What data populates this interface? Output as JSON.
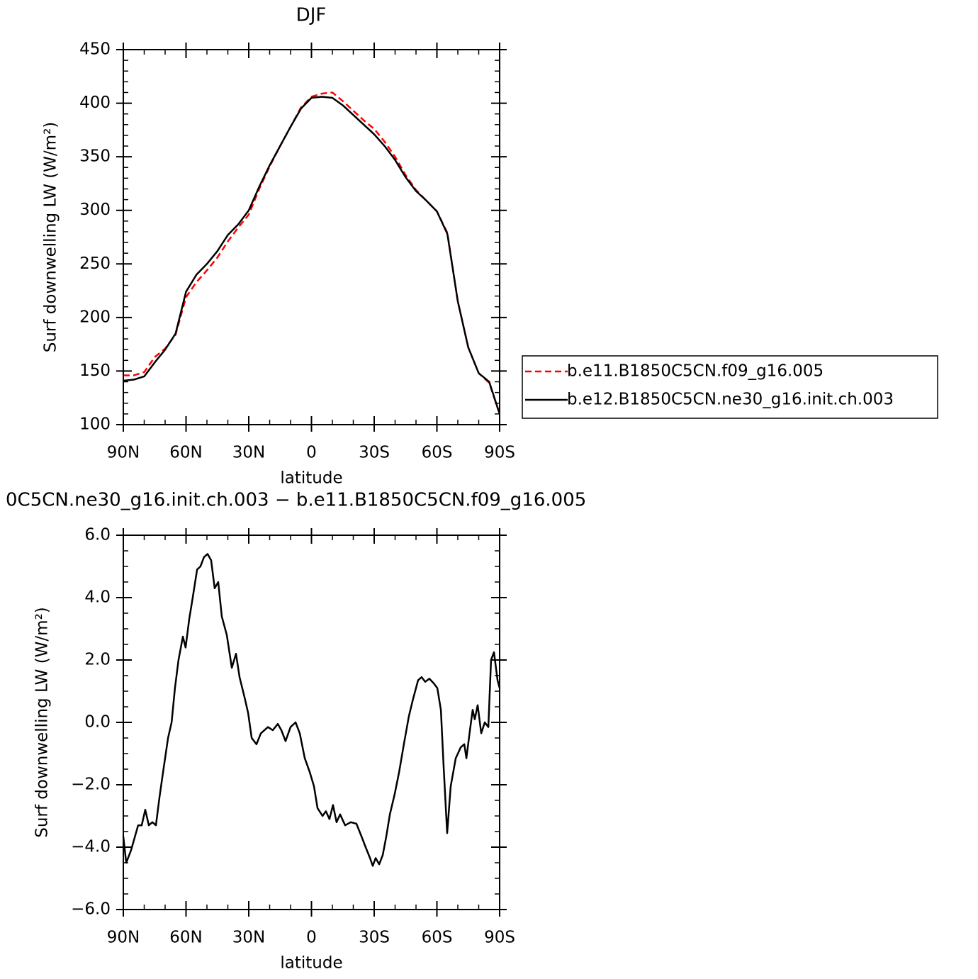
{
  "chart_data": [
    {
      "type": "line",
      "title": "DJF",
      "xlabel": "latitude",
      "ylabel": "Surf downwelling LW (W/m²)",
      "x": [
        90,
        85,
        80,
        75,
        70,
        65,
        60,
        55,
        50,
        45,
        40,
        35,
        30,
        25,
        20,
        15,
        10,
        5,
        0,
        -5,
        -10,
        -15,
        -20,
        -25,
        -30,
        -35,
        -40,
        -45,
        -50,
        -55,
        -60,
        -65,
        -70,
        -75,
        -80,
        -85,
        -90
      ],
      "series": [
        {
          "name": "b.e11.B1850C5CN.f09_g16.005",
          "color": "#ff0000",
          "line_style": "dashed",
          "values": [
            146,
            146,
            149,
            163,
            171,
            184,
            219,
            233,
            244,
            256,
            271,
            284,
            296,
            320,
            341,
            360,
            378,
            396,
            406,
            409,
            410,
            402,
            393,
            384,
            376,
            364,
            350,
            333,
            319,
            309,
            299,
            279,
            215,
            172,
            148,
            139,
            110
          ]
        },
        {
          "name": "b.e12.B1850C5CN.ne30_g16.init.ch.003",
          "color": "#000000",
          "line_style": "solid",
          "values": [
            141,
            142,
            145,
            158,
            170,
            185,
            224,
            240,
            250,
            262,
            277,
            287,
            300,
            322,
            342,
            360,
            378,
            395,
            405,
            406,
            405,
            398,
            389,
            380,
            371,
            360,
            347,
            331,
            318,
            309,
            299,
            278,
            215,
            172,
            148,
            140,
            110
          ]
        }
      ],
      "xlim": [
        90,
        -90
      ],
      "xticks": [
        {
          "value": 90,
          "label": "90N"
        },
        {
          "value": 60,
          "label": "60N"
        },
        {
          "value": 30,
          "label": "30N"
        },
        0,
        {
          "value": -30,
          "label": "30S"
        },
        {
          "value": -60,
          "label": "60S"
        },
        {
          "value": -90,
          "label": "90S"
        }
      ],
      "ylim": [
        100,
        450
      ],
      "yticks": [
        100,
        150,
        200,
        250,
        300,
        350,
        400,
        450
      ],
      "legend": "right"
    },
    {
      "type": "line",
      "title": "0C5CN.ne30_g16.init.ch.003 − b.e11.B1850C5CN.f09_g16.005",
      "xlabel": "latitude",
      "ylabel": "Surf downwelling LW (W/m²)",
      "x": [
        90,
        88.6,
        86.3,
        84.6,
        82.9,
        81.2,
        79.5,
        77.8,
        76.1,
        74.4,
        72.7,
        71,
        68.6,
        66.9,
        65.3,
        63.6,
        61.5,
        60.2,
        58.5,
        56.8,
        54.7,
        53.1,
        51.4,
        49.7,
        48,
        46.3,
        44.6,
        42.9,
        40.5,
        38.1,
        36.1,
        34.4,
        32,
        30.3,
        28.6,
        26.3,
        24.2,
        20.8,
        18.5,
        16.1,
        14.4,
        12.4,
        10,
        7.6,
        5.6,
        3.2,
        0.8,
        -1.2,
        -2.9,
        -5.3,
        -6.9,
        -8.6,
        -10.3,
        -12,
        -13.7,
        -16.1,
        -18.8,
        -21.5,
        -23.9,
        -25.9,
        -28,
        -29.3,
        -30.7,
        -32.4,
        -34.1,
        -35.8,
        -37.5,
        -39.8,
        -41.9,
        -44.2,
        -46.6,
        -48.6,
        -51,
        -52.7,
        -54.4,
        -56.4,
        -58.5,
        -60.2,
        -61.9,
        -63.2,
        -64.9,
        -66.6,
        -69,
        -71.4,
        -73.1,
        -74.1,
        -75.8,
        -77.1,
        -78.1,
        -79.5,
        -81.2,
        -82.9,
        -84.6,
        -85.9,
        -87.3,
        -89,
        -90
      ],
      "series": [
        {
          "name": null,
          "color": "#000000",
          "line_style": "solid",
          "values": [
            -3.66,
            -4.5,
            -4.1,
            -3.7,
            -3.3,
            -3.3,
            -2.8,
            -3.3,
            -3.2,
            -3.3,
            -2.4,
            -1.6,
            -0.5,
            0,
            1.1,
            2,
            2.75,
            2.4,
            3.3,
            4,
            4.9,
            5,
            5.3,
            5.4,
            5.2,
            4.3,
            4.5,
            3.4,
            2.8,
            1.75,
            2.2,
            1.45,
            0.8,
            0.3,
            -0.5,
            -0.7,
            -0.35,
            -0.15,
            -0.25,
            -0.05,
            -0.25,
            -0.6,
            -0.15,
            0,
            -0.35,
            -1.15,
            -1.6,
            -2.05,
            -2.75,
            -3,
            -2.85,
            -3.1,
            -2.65,
            -3.2,
            -2.95,
            -3.3,
            -3.2,
            -3.25,
            -3.65,
            -4,
            -4.35,
            -4.6,
            -4.35,
            -4.55,
            -4.25,
            -3.65,
            -2.95,
            -2.3,
            -1.6,
            -0.7,
            0.2,
            0.75,
            1.35,
            1.45,
            1.3,
            1.4,
            1.25,
            1.1,
            0.4,
            -1.4,
            -3.55,
            -2.05,
            -1.15,
            -0.8,
            -0.7,
            -1.15,
            -0.25,
            0.4,
            0.1,
            0.55,
            -0.35,
            0,
            -0.15,
            2,
            2.25,
            1.35,
            1.1
          ]
        }
      ],
      "xlim": [
        90,
        -90
      ],
      "xticks": [
        {
          "value": 90,
          "label": "90N"
        },
        {
          "value": 60,
          "label": "60N"
        },
        {
          "value": 30,
          "label": "30N"
        },
        0,
        {
          "value": -30,
          "label": "30S"
        },
        {
          "value": -60,
          "label": "60S"
        },
        {
          "value": -90,
          "label": "90S"
        }
      ],
      "ylim": [
        -6,
        6
      ],
      "yticks": [
        {
          "value": -6,
          "label": "−6.0"
        },
        {
          "value": -4,
          "label": "−4.0"
        },
        {
          "value": -2,
          "label": "−2.0"
        },
        {
          "value": 0,
          "label": "0.0"
        },
        {
          "value": 2,
          "label": "2.0"
        },
        {
          "value": 4,
          "label": "4.0"
        },
        {
          "value": 6,
          "label": "6.0"
        }
      ]
    }
  ]
}
